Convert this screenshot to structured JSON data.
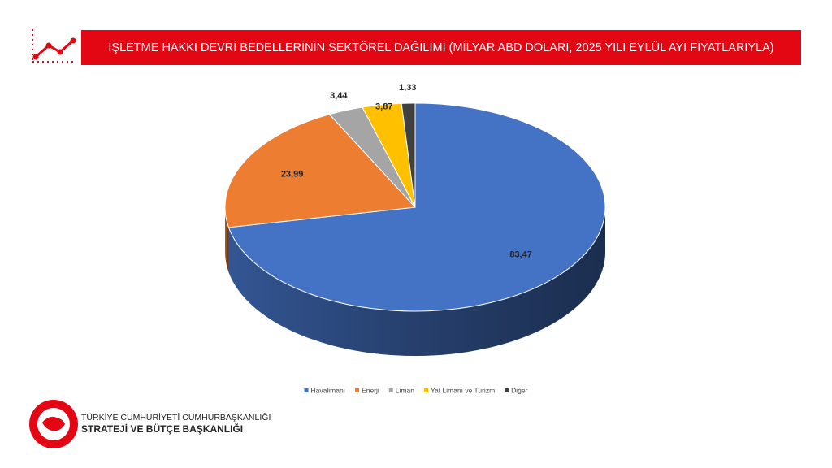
{
  "header": {
    "title": "İŞLETME HAKKI DEVRİ BEDELLERİNİN SEKTÖREL DAĞILIMI (MİLYAR ABD DOLARI, 2025 YILI  EYLÜL AYI FİYATLARIYLA)"
  },
  "chart_data": {
    "type": "pie3d",
    "categories": [
      "Havalimanı",
      "Enerji",
      "Liman",
      "Yat Limanı ve Turizm",
      "Diğer"
    ],
    "values": [
      83.47,
      23.99,
      3.44,
      3.87,
      1.33
    ],
    "value_labels": [
      "83,47",
      "23,99",
      "3,44",
      "3,87",
      "1,33"
    ],
    "colors": [
      "#4472c4",
      "#ed7d31",
      "#a5a5a5",
      "#ffc000",
      "#404040"
    ],
    "legend": "bottom"
  },
  "footer": {
    "line1": "TÜRKİYE CUMHURİYETİ CUMHURBAŞKANLIĞI",
    "line2": "STRATEJİ VE BÜTÇE BAŞKANLIĞI"
  }
}
